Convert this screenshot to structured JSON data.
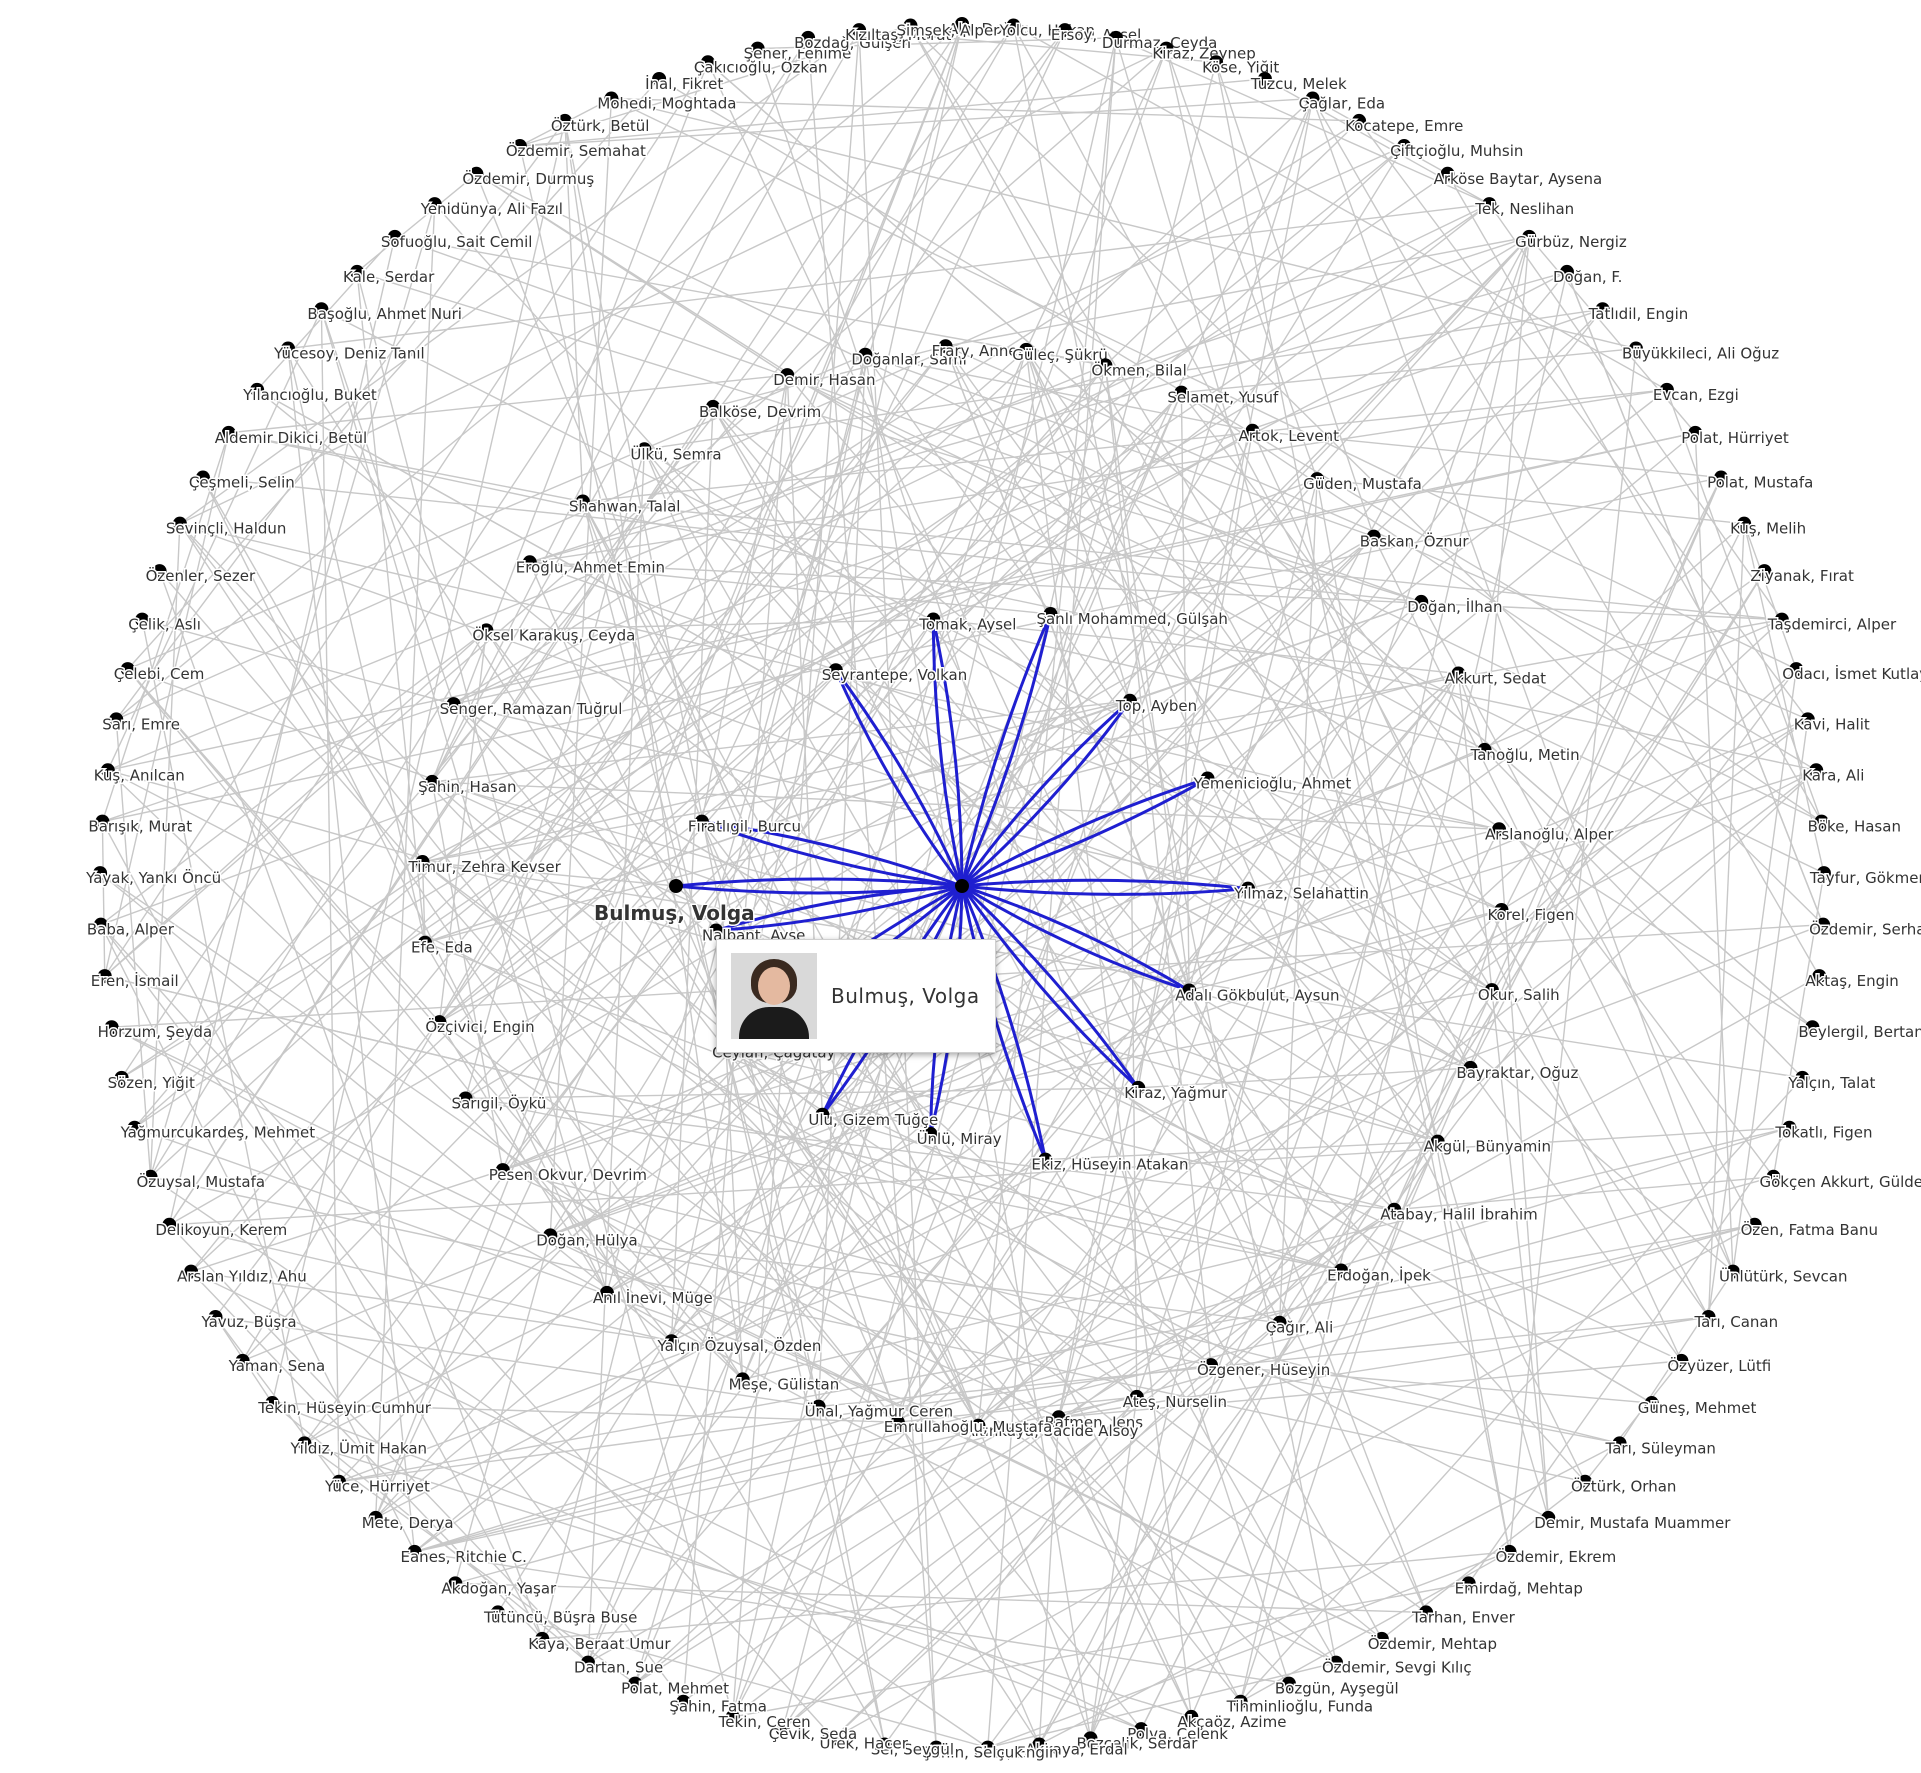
{
  "center": {
    "name": "Bulmuş, Volga"
  },
  "neighbors": [
    "Seyrantepe, Volkan",
    "Tomak, Aysel",
    "Şanlı Mohammed, Gülşah",
    "Top, Ayben",
    "Yemenicioğlu, Ahmet",
    "Yılmaz, Selahattin",
    "Adalı Gökbulut, Aysun",
    "Kiraz, Yağmur",
    "Ekiz, Hüseyin Atakan",
    "Ünlü, Miray",
    "Ulu, Gizem Tuğçe",
    "Ceylan, Çağatay",
    "Nalbant, Ayşe",
    "Fıratlıgil, Burcu",
    "Bulmuş, Volga"
  ],
  "outer_nodes": [
    "Alp, Doğan",
    "Yolcu, Hakan",
    "Ersoy, Aysel",
    "Durmaz, Ceyda",
    "Kiraz, Zeynep",
    "Köse, Yiğit",
    "Tuzcu, Melek",
    "Çağlar, Eda",
    "Kocatepe, Emre",
    "Çiftçioğlu, Muhsin",
    "Arköse Baytar, Aysena",
    "Tek, Neslihan",
    "Gürbüz, Nergiz",
    "Doğan, F.",
    "Tatlıdil, Engin",
    "Büyükkileci, Ali Oğuz",
    "Evcan, Ezgi",
    "Polat, Hürriyet",
    "Polat, Mustafa",
    "Kuş, Melih",
    "Ziyanak, Fırat",
    "Taşdemirci, Alper",
    "Odacı, İsmet Kutlay",
    "Kavi, Halit",
    "Kara, Ali",
    "Böke, Hasan",
    "Tayfur, Gökmen",
    "Özdemir, Serhan",
    "Aktaş, Engin",
    "Beylergil, Bertan",
    "Yalçın, Talat",
    "Tokatlı, Figen",
    "Gökçen Akkurt, Gülden",
    "Özen, Fatma Banu",
    "Ünlütürk, Sevcan",
    "Tarı, Canan",
    "Özyüzer, Lütfi",
    "Güneş, Mehmet",
    "Tarı, Süleyman",
    "Öztürk, Orhan",
    "Demir, Mustafa Muammer",
    "Özdemir, Ekrem",
    "Emirdağ, Mehtap",
    "Tarhan, Enver",
    "Özdemir, Mehtap",
    "Özdemir, Sevgi Kılıç",
    "Bozgün, Ayşegül",
    "Tihminlioğlu, Funda",
    "Akçaöz, Azime",
    "Polva, Çelenk",
    "Bozçelik, Serdar",
    "Akkaya, Erdal",
    "Eker, Engin",
    "Şahin, Selçuk",
    "Sel, Sevgül",
    "Ürek, Hacer",
    "Çevik, Seda",
    "Tekin, Ceren",
    "Şahin, Fatma",
    "Polat, Mehmet",
    "Dartan, Sue",
    "Kaya, Beraat Umur",
    "Tütüncü, Büşra Buse",
    "Akdoğan, Yaşar",
    "Eanes, Ritchie C.",
    "Mete, Derya",
    "Yüce, Hürriyet",
    "Yıldız, Ümit Hakan",
    "Tekin, Hüseyin Cumhur",
    "Yaman, Sena",
    "Yavuz, Büşra",
    "Arslan Yıldız, Ahu",
    "Delikoyun, Kerem",
    "Özuysal, Mustafa",
    "Yağmurcukardeş, Mehmet",
    "Sözen, Yiğit",
    "Horzum, Şeyda",
    "Eren, İsmail",
    "Baba, Alper",
    "Yayak, Yankı Öncü",
    "Barışık, Murat",
    "Kuş, Anılcan",
    "Sarı, Emre",
    "Çelebi, Cem",
    "Çelik, Aslı",
    "Özenler, Sezer",
    "Sevinçli, Haldun",
    "Çeşmeli, Selin",
    "Aldemir Dikici, Betül",
    "Yılancıoğlu, Buket",
    "Yücesoy, Deniz Tanıl",
    "Başoğlu, Ahmet Nuri",
    "Kale, Serdar",
    "Sofuoğlu, Sait Cemil",
    "Yenidünya, Ali Fazıl",
    "Özdemir, Durmuş",
    "Özdemir, Semahat",
    "Öztürk, Betül",
    "Mohedi, Moghtada",
    "İnal, Fikret",
    "Çakıcıoğlu, Özkan",
    "Şener, Fehime",
    "Bozdağ, Gülşen",
    "Kızıltaş, Murat",
    "Şimşek, Alper"
  ],
  "inner_nodes": [
    "Balköse, Devrim",
    "Demir, Hasan",
    "Doğanlar, Sami",
    "Frary, Anne",
    "Güleç, Şükrü",
    "Ökmen, Bilal",
    "Selamet, Yusuf",
    "Artok, Levent",
    "Güden, Mustafa",
    "Baskan, Öznur",
    "Doğan, İlhan",
    "Akkurt, Sedat",
    "Tanoğlu, Metin",
    "Arslanoğlu, Alper",
    "Korel, Figen",
    "Okur, Salih",
    "Bayraktar, Oğuz",
    "Akgül, Bünyamin",
    "Atabay, Halil İbrahim",
    "Erdoğan, İpek",
    "Çağır, Ali",
    "Özgener, Hüseyin",
    "Ateş, Nurselin",
    "Rafmen, Jens",
    "Altınkaya, Sacide Alsoy",
    "Emrullahoğlu, Mustafa",
    "Ünal, Yağmur Ceren",
    "Meşe, Gülistan",
    "Yalçın Özuysal, Özden",
    "Anıl İnevi, Müge",
    "Doğan, Hülya",
    "Pesen Okvur, Devrim",
    "Sarıgil, Öykü",
    "Özçivici, Engin",
    "Efe, Eda",
    "Timur, Zehra Kevser",
    "Şahin, Hasan",
    "Senger, Ramazan Tuğrul",
    "Öksel Karakuş, Ceyda",
    "Eroğlu, Ahmet Emin",
    "Shahwan, Talal",
    "Ülkü, Semra"
  ],
  "tooltip": {
    "name": "Bulmuş, Volga",
    "photo": "person-photo"
  },
  "colors": {
    "edge": "#c8c8c8",
    "highlight": "#1f1fd0",
    "node": "#000000"
  }
}
